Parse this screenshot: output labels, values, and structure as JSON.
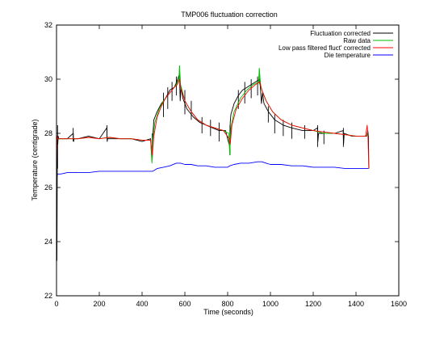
{
  "chart_data": {
    "type": "line",
    "title": "TMP006 fluctuation correction",
    "xlabel": "Time (seconds)",
    "ylabel": "Temperature (centigrade)",
    "xlim": [
      0,
      1600
    ],
    "ylim": [
      22,
      32
    ],
    "xticks": [
      0,
      200,
      400,
      600,
      800,
      1000,
      1200,
      1400,
      1600
    ],
    "yticks": [
      22,
      24,
      26,
      28,
      30,
      32
    ],
    "grid": false,
    "legend_position": "top-right",
    "series": [
      {
        "name": "Fluctuation corrected",
        "color": "#000000",
        "x": [
          0,
          2,
          4,
          6,
          8,
          10,
          20,
          50,
          78,
          80,
          82,
          100,
          150,
          200,
          235,
          237,
          239,
          300,
          350,
          400,
          440,
          446,
          450,
          455,
          470,
          490,
          510,
          530,
          550,
          562,
          575,
          578,
          582,
          590,
          610,
          640,
          670,
          700,
          730,
          760,
          790,
          810,
          812,
          815,
          830,
          850,
          870,
          890,
          910,
          930,
          950,
          958,
          963,
          970,
          990,
          1020,
          1060,
          1100,
          1150,
          1200,
          1220,
          1222,
          1225,
          1250,
          1300,
          1340,
          1342,
          1345,
          1380,
          1420,
          1450,
          1455,
          1458,
          1460
        ],
        "y": [
          26.6,
          23.3,
          27.9,
          27.6,
          27.9,
          27.8,
          27.8,
          27.8,
          28.0,
          27.7,
          27.8,
          27.8,
          27.9,
          27.8,
          28.2,
          27.7,
          27.8,
          27.8,
          27.8,
          27.7,
          27.8,
          27.0,
          27.9,
          28.5,
          28.8,
          29.1,
          29.3,
          29.6,
          29.7,
          29.9,
          30.2,
          29.2,
          29.7,
          29.3,
          28.9,
          28.6,
          28.4,
          28.3,
          28.2,
          28.1,
          28.1,
          27.5,
          28.4,
          28.7,
          29.1,
          29.4,
          29.6,
          29.7,
          29.8,
          29.9,
          30.0,
          29.1,
          29.5,
          29.1,
          28.8,
          28.5,
          28.3,
          28.2,
          28.1,
          28.1,
          28.2,
          27.7,
          28.0,
          28.0,
          28.0,
          28.1,
          27.6,
          28.0,
          27.9,
          27.9,
          27.9,
          28.1,
          27.9,
          26.7
        ],
        "spikes": [
          [
            5,
            28.3,
            26.7
          ],
          [
            78,
            28.2,
            27.7
          ],
          [
            236,
            28.3,
            27.8
          ],
          [
            448,
            28.0,
            27.1
          ],
          [
            500,
            29.5,
            28.6
          ],
          [
            520,
            29.7,
            28.9
          ],
          [
            540,
            29.9,
            29.2
          ],
          [
            560,
            30.1,
            29.4
          ],
          [
            600,
            29.6,
            28.7
          ],
          [
            630,
            29.2,
            28.5
          ],
          [
            680,
            28.6,
            28.0
          ],
          [
            720,
            28.5,
            27.9
          ],
          [
            760,
            28.4,
            27.7
          ],
          [
            811,
            28.3,
            27.2
          ],
          [
            850,
            29.6,
            28.9
          ],
          [
            880,
            29.9,
            29.1
          ],
          [
            910,
            30.0,
            29.3
          ],
          [
            940,
            30.1,
            29.4
          ],
          [
            990,
            29.0,
            28.4
          ],
          [
            1020,
            28.7,
            28.0
          ],
          [
            1060,
            28.5,
            27.9
          ],
          [
            1100,
            28.4,
            27.8
          ],
          [
            1160,
            28.3,
            27.8
          ],
          [
            1221,
            28.3,
            27.5
          ],
          [
            1250,
            28.1,
            27.6
          ],
          [
            1341,
            28.2,
            27.5
          ]
        ]
      },
      {
        "name": "Raw data",
        "color": "#00c000",
        "x": [
          0,
          4,
          10,
          50,
          100,
          150,
          200,
          240,
          300,
          350,
          400,
          440,
          446,
          450,
          460,
          480,
          500,
          520,
          540,
          560,
          572,
          575,
          580,
          600,
          630,
          660,
          700,
          740,
          780,
          805,
          810,
          815,
          830,
          860,
          890,
          920,
          945,
          948,
          955,
          980,
          1010,
          1050,
          1100,
          1150,
          1200,
          1250,
          1300,
          1350,
          1400,
          1440,
          1458
        ],
        "y": [
          27.7,
          27.8,
          27.8,
          27.8,
          27.8,
          27.85,
          27.8,
          27.85,
          27.8,
          27.8,
          27.75,
          27.75,
          26.9,
          27.8,
          28.4,
          28.9,
          29.2,
          29.4,
          29.6,
          29.8,
          30.0,
          30.5,
          29.8,
          29.2,
          28.8,
          28.5,
          28.3,
          28.2,
          28.1,
          28.0,
          27.2,
          28.2,
          28.8,
          29.3,
          29.6,
          29.8,
          29.9,
          30.4,
          29.7,
          29.2,
          28.8,
          28.5,
          28.3,
          28.2,
          28.1,
          28.0,
          28.0,
          27.95,
          27.9,
          27.9,
          27.95
        ],
        "spikes": [
          [
            575,
            30.5,
            29.9
          ],
          [
            948,
            30.4,
            29.8
          ],
          [
            810,
            28.0,
            27.2
          ]
        ]
      },
      {
        "name": "Low pass filtered fluct' corrected",
        "color": "#ff0000",
        "x": [
          0,
          2,
          6,
          10,
          50,
          100,
          150,
          200,
          250,
          300,
          350,
          400,
          440,
          448,
          455,
          470,
          490,
          510,
          530,
          550,
          565,
          575,
          580,
          600,
          630,
          660,
          700,
          740,
          780,
          808,
          812,
          820,
          840,
          870,
          900,
          930,
          950,
          960,
          980,
          1010,
          1050,
          1100,
          1150,
          1200,
          1250,
          1300,
          1350,
          1400,
          1445,
          1452,
          1456,
          1460
        ],
        "y": [
          26.8,
          27.9,
          27.8,
          27.8,
          27.8,
          27.8,
          27.85,
          27.8,
          27.85,
          27.8,
          27.8,
          27.75,
          27.75,
          27.2,
          27.9,
          28.6,
          29.0,
          29.3,
          29.5,
          29.7,
          29.8,
          30.0,
          29.7,
          29.2,
          28.8,
          28.5,
          28.3,
          28.2,
          28.1,
          27.8,
          27.6,
          28.3,
          28.9,
          29.3,
          29.6,
          29.8,
          29.9,
          29.6,
          29.2,
          28.8,
          28.5,
          28.3,
          28.2,
          28.1,
          28.05,
          28.0,
          27.95,
          27.9,
          27.9,
          28.3,
          27.9,
          26.7
        ]
      },
      {
        "name": "Die temperature",
        "color": "#0000ff",
        "x": [
          0,
          5,
          20,
          50,
          100,
          150,
          200,
          300,
          400,
          440,
          450,
          470,
          500,
          530,
          560,
          580,
          600,
          630,
          660,
          700,
          740,
          780,
          800,
          810,
          830,
          860,
          900,
          940,
          960,
          980,
          1000,
          1050,
          1100,
          1150,
          1200,
          1250,
          1300,
          1350,
          1400,
          1458
        ],
        "y": [
          26.3,
          26.5,
          26.5,
          26.55,
          26.55,
          26.55,
          26.6,
          26.6,
          26.6,
          26.6,
          26.6,
          26.7,
          26.75,
          26.8,
          26.9,
          26.9,
          26.85,
          26.85,
          26.8,
          26.8,
          26.75,
          26.75,
          26.75,
          26.8,
          26.85,
          26.9,
          26.9,
          26.95,
          26.95,
          26.9,
          26.85,
          26.85,
          26.8,
          26.8,
          26.75,
          26.75,
          26.75,
          26.7,
          26.7,
          26.7
        ]
      }
    ]
  }
}
